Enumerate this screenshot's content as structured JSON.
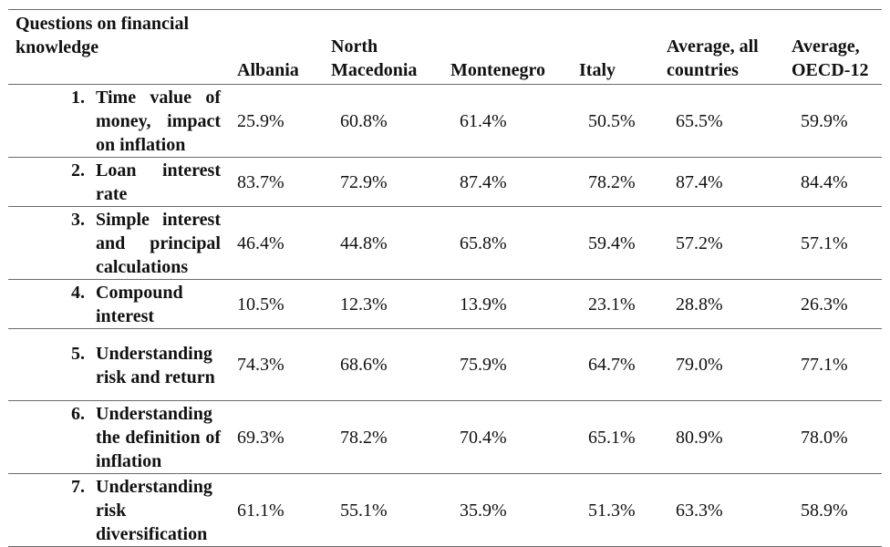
{
  "table": {
    "headers": [
      "Questions on financial knowledge",
      "Albania",
      "North Macedonia",
      "Montenegro",
      "Italy",
      "Average, all countries",
      "Average, OECD-12"
    ],
    "rows": [
      {
        "num": "1.",
        "question": "Time value of money, impact on inflation",
        "values": [
          "25.9%",
          "60.8%",
          "61.4%",
          "50.5%",
          "65.5%",
          "59.9%"
        ]
      },
      {
        "num": "2.",
        "question": "Loan interest rate",
        "values": [
          "83.7%",
          "72.9%",
          "87.4%",
          "78.2%",
          "87.4%",
          "84.4%"
        ]
      },
      {
        "num": "3.",
        "question": "Simple interest and principal calculations",
        "values": [
          "46.4%",
          "44.8%",
          "65.8%",
          "59.4%",
          "57.2%",
          "57.1%"
        ]
      },
      {
        "num": "4.",
        "question": "Compound interest",
        "values": [
          "10.5%",
          "12.3%",
          "13.9%",
          "23.1%",
          "28.8%",
          "26.3%"
        ]
      },
      {
        "num": "5.",
        "question": "Understanding risk and return",
        "values": [
          "74.3%",
          "68.6%",
          "75.9%",
          "64.7%",
          "79.0%",
          "77.1%"
        ]
      },
      {
        "num": "6.",
        "question": "Understanding the definition of inflation",
        "values": [
          "69.3%",
          "78.2%",
          "70.4%",
          "65.1%",
          "80.9%",
          "78.0%"
        ]
      },
      {
        "num": "7.",
        "question": "Understanding risk diversification",
        "values": [
          "61.1%",
          "55.1%",
          "35.9%",
          "51.3%",
          "63.3%",
          "58.9%"
        ]
      }
    ]
  }
}
